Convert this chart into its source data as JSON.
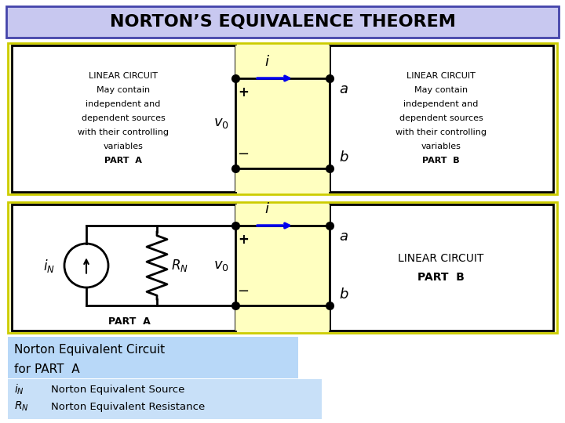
{
  "title": "NORTON’S EQUIVALENCE THEOREM",
  "title_bg": "#c8c8f0",
  "title_border": "#4444aa",
  "title_color": "#000000",
  "bg_color": "#ffffff",
  "yellow_bg": "#ffffc0",
  "blue_arrow": "#0000ee",
  "black": "#000000",
  "light_blue_bg": "#b8d8f8",
  "light_blue_bg2": "#c8e0f8",
  "part_a_lines": [
    "LINEAR CIRCUIT",
    "May contain",
    "independent and",
    "dependent sources",
    "with their controlling",
    "variables",
    "PART  A"
  ],
  "part_b_lines": [
    "LINEAR CIRCUIT",
    "May contain",
    "independent and",
    "dependent sources",
    "with their controlling",
    "variables",
    "PART  B"
  ],
  "norton_label1": "Norton Equivalent Circuit",
  "norton_label2": "for PART  A",
  "legend1_sym": "$i_N$",
  "legend1_text": "Norton Equivalent Source",
  "legend2_sym": "$R_N$",
  "legend2_text": "Norton Equivalent Resistance"
}
